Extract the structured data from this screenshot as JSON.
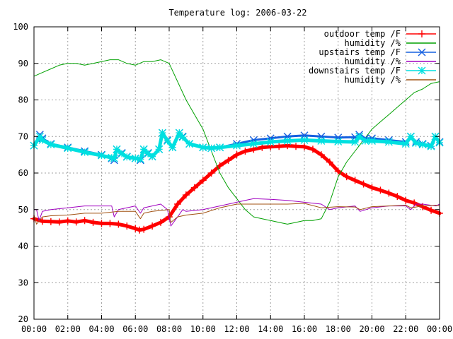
{
  "chart_data": {
    "type": "line",
    "title": "Temperature log: 2006-03-22",
    "xlabel": "",
    "ylabel": "",
    "xlim": [
      0,
      24
    ],
    "ylim": [
      20,
      100
    ],
    "x_tick_labels": [
      "00:00",
      "02:00",
      "04:00",
      "06:00",
      "08:00",
      "10:00",
      "12:00",
      "14:00",
      "16:00",
      "18:00",
      "20:00",
      "22:00",
      "00:00"
    ],
    "y_ticks": [
      20,
      30,
      40,
      50,
      60,
      70,
      80,
      90,
      100
    ],
    "grid": true,
    "legend_position": "top-right",
    "series": [
      {
        "name": "outdoor temp /F",
        "color": "#ff0000",
        "marker": "plus",
        "width": 5,
        "x": [
          0,
          0.5,
          1,
          1.5,
          2,
          2.5,
          3,
          3.5,
          4,
          4.5,
          5,
          5.5,
          6,
          6.25,
          6.5,
          7,
          7.5,
          8,
          8.5,
          9,
          9.5,
          10,
          10.5,
          11,
          11.5,
          12,
          12.5,
          13,
          13.5,
          14,
          14.5,
          15,
          15.5,
          16,
          16.5,
          17,
          17.5,
          18,
          18.5,
          19,
          19.5,
          20,
          20.5,
          21,
          21.5,
          22,
          22.5,
          23,
          23.5,
          24
        ],
        "y": [
          47.5,
          46.8,
          46.7,
          46.6,
          46.9,
          46.6,
          47,
          46.5,
          46.2,
          46.2,
          46,
          45.5,
          44.8,
          44.4,
          44.6,
          45.5,
          46.5,
          48,
          51.5,
          54,
          56,
          58,
          60,
          62,
          63.5,
          65,
          66,
          66.5,
          67,
          67.2,
          67.3,
          67.5,
          67.3,
          67.2,
          66.5,
          65,
          63,
          60.5,
          59,
          58,
          57,
          56,
          55.3,
          54.5,
          53.6,
          52.5,
          51.8,
          50.8,
          49.8,
          49
        ]
      },
      {
        "name": "humidity /%",
        "color": "#00a000",
        "marker": "none",
        "width": 1,
        "x": [
          0,
          0.5,
          1,
          1.5,
          2,
          2.5,
          3,
          3.5,
          4,
          4.5,
          5,
          5.5,
          6,
          6.5,
          7,
          7.5,
          8,
          8.5,
          9,
          9.5,
          10,
          10.5,
          11,
          11.5,
          12,
          12.5,
          13,
          13.5,
          14,
          14.5,
          15,
          15.5,
          16,
          16.5,
          17,
          17.5,
          18,
          18.5,
          19,
          19.5,
          20,
          20.5,
          21,
          21.5,
          22,
          22.5,
          23,
          23.5,
          24
        ],
        "y": [
          86.5,
          87.5,
          88.5,
          89.5,
          90,
          90,
          89.5,
          90,
          90.5,
          91,
          91,
          90,
          89.5,
          90.5,
          90.5,
          91,
          90,
          85,
          80,
          76,
          72,
          66,
          60,
          56,
          53,
          50,
          48,
          47.5,
          47,
          46.5,
          46,
          46.5,
          47,
          47,
          47.5,
          52,
          59,
          63,
          66,
          69,
          72,
          74,
          76,
          78,
          80,
          82,
          83,
          84.5,
          85
        ]
      },
      {
        "name": "upstairs temp /F",
        "color": "#1560e0",
        "marker": "cross",
        "width": 3,
        "x": [
          0,
          0.35,
          0.5,
          1,
          2,
          3,
          4,
          4.6,
          4.75,
          4.9,
          5.2,
          5.5,
          6,
          6.3,
          6.5,
          6.75,
          7,
          7.4,
          7.6,
          7.9,
          8.2,
          8.6,
          8.8,
          9.2,
          10,
          10.5,
          11,
          12,
          13,
          14,
          15,
          16,
          17,
          18,
          19,
          19.25,
          19.6,
          20,
          21,
          22,
          22.3,
          22.6,
          23,
          23.5,
          23.75,
          24
        ],
        "y": [
          67.5,
          70.5,
          69.5,
          68,
          67,
          66,
          65,
          64,
          63.5,
          66.5,
          65.5,
          64.5,
          64,
          63.5,
          66.5,
          65.5,
          64.5,
          66.5,
          71,
          69,
          67,
          71,
          70,
          68,
          67,
          66.8,
          67,
          68,
          69,
          69.5,
          70,
          70.3,
          70,
          69.7,
          69.8,
          70.5,
          69.5,
          69.5,
          69,
          68.5,
          70,
          68.5,
          68,
          67.5,
          70,
          68.5
        ]
      },
      {
        "name": "humidity /%",
        "color": "#a000c0",
        "marker": "none",
        "width": 1,
        "x": [
          0,
          0.15,
          0.3,
          0.5,
          1,
          2,
          3,
          4,
          4.6,
          4.75,
          5,
          6,
          6.3,
          6.5,
          7,
          7.5,
          7.9,
          8.1,
          8.5,
          8.8,
          9,
          10,
          11,
          12,
          12.5,
          13,
          14,
          15,
          16,
          17,
          17.5,
          18,
          19,
          19.3,
          20,
          21,
          22,
          22.3,
          22.6,
          23,
          23.8,
          24
        ],
        "y": [
          50,
          50,
          47,
          49.5,
          50,
          50.5,
          51,
          51,
          51,
          48,
          50,
          51,
          49,
          50.5,
          51,
          51.5,
          50,
          45.5,
          48,
          50,
          49.5,
          50,
          51,
          52,
          52.5,
          53,
          52.8,
          52.5,
          52,
          51.5,
          50,
          50.5,
          51,
          49.5,
          50.5,
          51,
          51,
          50,
          51.5,
          51.5,
          51,
          51.5
        ]
      },
      {
        "name": "downstairs temp /F",
        "color": "#00e0e0",
        "marker": "star",
        "width": 5,
        "x": [
          0,
          0.35,
          0.5,
          1,
          2,
          3,
          4,
          4.6,
          4.75,
          4.9,
          5.2,
          5.5,
          6,
          6.3,
          6.5,
          6.75,
          7,
          7.4,
          7.6,
          7.9,
          8.2,
          8.6,
          8.8,
          9.2,
          10,
          10.5,
          11,
          12,
          13,
          14,
          15,
          16,
          17,
          18,
          19,
          19.25,
          19.6,
          20,
          21,
          22,
          22.3,
          22.6,
          23,
          23.5,
          23.75,
          24
        ],
        "y": [
          67.5,
          70,
          69,
          67.8,
          66.8,
          65.7,
          64.8,
          64.2,
          64,
          66.5,
          65.3,
          64.4,
          64,
          63.8,
          66.5,
          65.3,
          64.5,
          66.5,
          71,
          68.8,
          67,
          71,
          69.8,
          68,
          67,
          66.8,
          67,
          67.5,
          68,
          68.5,
          68.8,
          69,
          68.8,
          68.6,
          68.5,
          70,
          68.8,
          68.8,
          68.5,
          68,
          70,
          68.2,
          67.8,
          67.3,
          70,
          68.3
        ]
      },
      {
        "name": "humidity /%",
        "color": "#a05010",
        "marker": "none",
        "width": 1,
        "x": [
          0,
          0.15,
          0.5,
          1,
          2,
          3,
          4,
          5,
          6,
          6.3,
          6.5,
          7,
          8,
          8.1,
          8.5,
          9,
          10,
          11,
          12,
          13,
          14,
          15,
          16,
          17,
          18,
          19,
          19.3,
          20,
          21,
          22,
          22.3,
          23,
          23.8,
          24
        ],
        "y": [
          48.5,
          46,
          48,
          48.3,
          48.5,
          49,
          49,
          49.5,
          49.5,
          47.5,
          49,
          49.5,
          50,
          46.5,
          48,
          48.5,
          49,
          50.5,
          51.5,
          51.5,
          51.5,
          51.5,
          51.7,
          50.5,
          50.8,
          50.7,
          50,
          50.8,
          51,
          51.2,
          50.5,
          51,
          51.2,
          51
        ]
      }
    ]
  }
}
